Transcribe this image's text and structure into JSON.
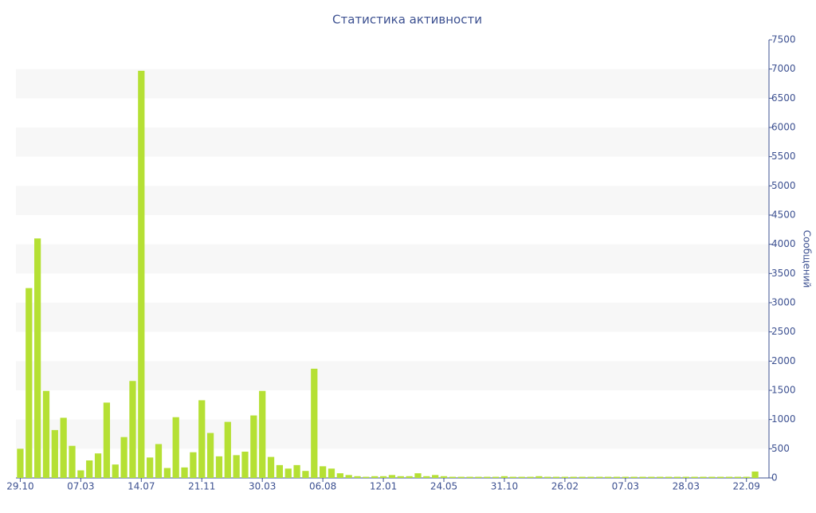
{
  "chart_data": {
    "type": "bar",
    "title": "Статистика активности",
    "y_axis_label": "Сообщений",
    "categories": [
      "29.10",
      null,
      null,
      null,
      null,
      null,
      null,
      "07.03",
      null,
      null,
      null,
      null,
      null,
      null,
      "14.07",
      null,
      null,
      null,
      null,
      null,
      null,
      "21.11",
      null,
      null,
      null,
      null,
      null,
      null,
      "30.03",
      null,
      null,
      null,
      null,
      null,
      null,
      "06.08",
      null,
      null,
      null,
      null,
      null,
      null,
      "12.01",
      null,
      null,
      null,
      null,
      null,
      null,
      "24.05",
      null,
      null,
      null,
      null,
      null,
      null,
      "31.10",
      null,
      null,
      null,
      null,
      null,
      null,
      "26.02",
      null,
      null,
      null,
      null,
      null,
      null,
      "07.03",
      null,
      null,
      null,
      null,
      null,
      null,
      "28.03",
      null,
      null,
      null,
      null,
      null,
      null,
      "22.09",
      null
    ],
    "values": [
      500,
      3250,
      4100,
      1490,
      820,
      1030,
      550,
      130,
      300,
      420,
      1290,
      230,
      700,
      1660,
      6970,
      350,
      580,
      170,
      1040,
      180,
      440,
      1330,
      770,
      370,
      960,
      390,
      450,
      1070,
      1490,
      360,
      220,
      160,
      220,
      120,
      1870,
      200,
      160,
      80,
      50,
      30,
      20,
      30,
      30,
      50,
      30,
      30,
      80,
      30,
      50,
      30,
      20,
      20,
      20,
      20,
      20,
      20,
      30,
      20,
      20,
      20,
      30,
      20,
      20,
      20,
      20,
      20,
      20,
      20,
      20,
      20,
      20,
      20,
      20,
      20,
      20,
      20,
      20,
      20,
      20,
      20,
      20,
      20,
      20,
      20,
      20,
      110
    ],
    "color": "#b5e034",
    "ylim": [
      0,
      7500
    ],
    "yticks": [
      0,
      500,
      1000,
      1500,
      2000,
      2500,
      3000,
      3500,
      4000,
      4500,
      5000,
      5500,
      6000,
      6500,
      7000,
      7500
    ],
    "y_axis_side": "right",
    "grid": "alternate-bands",
    "band_color": "#f7f7f7"
  }
}
